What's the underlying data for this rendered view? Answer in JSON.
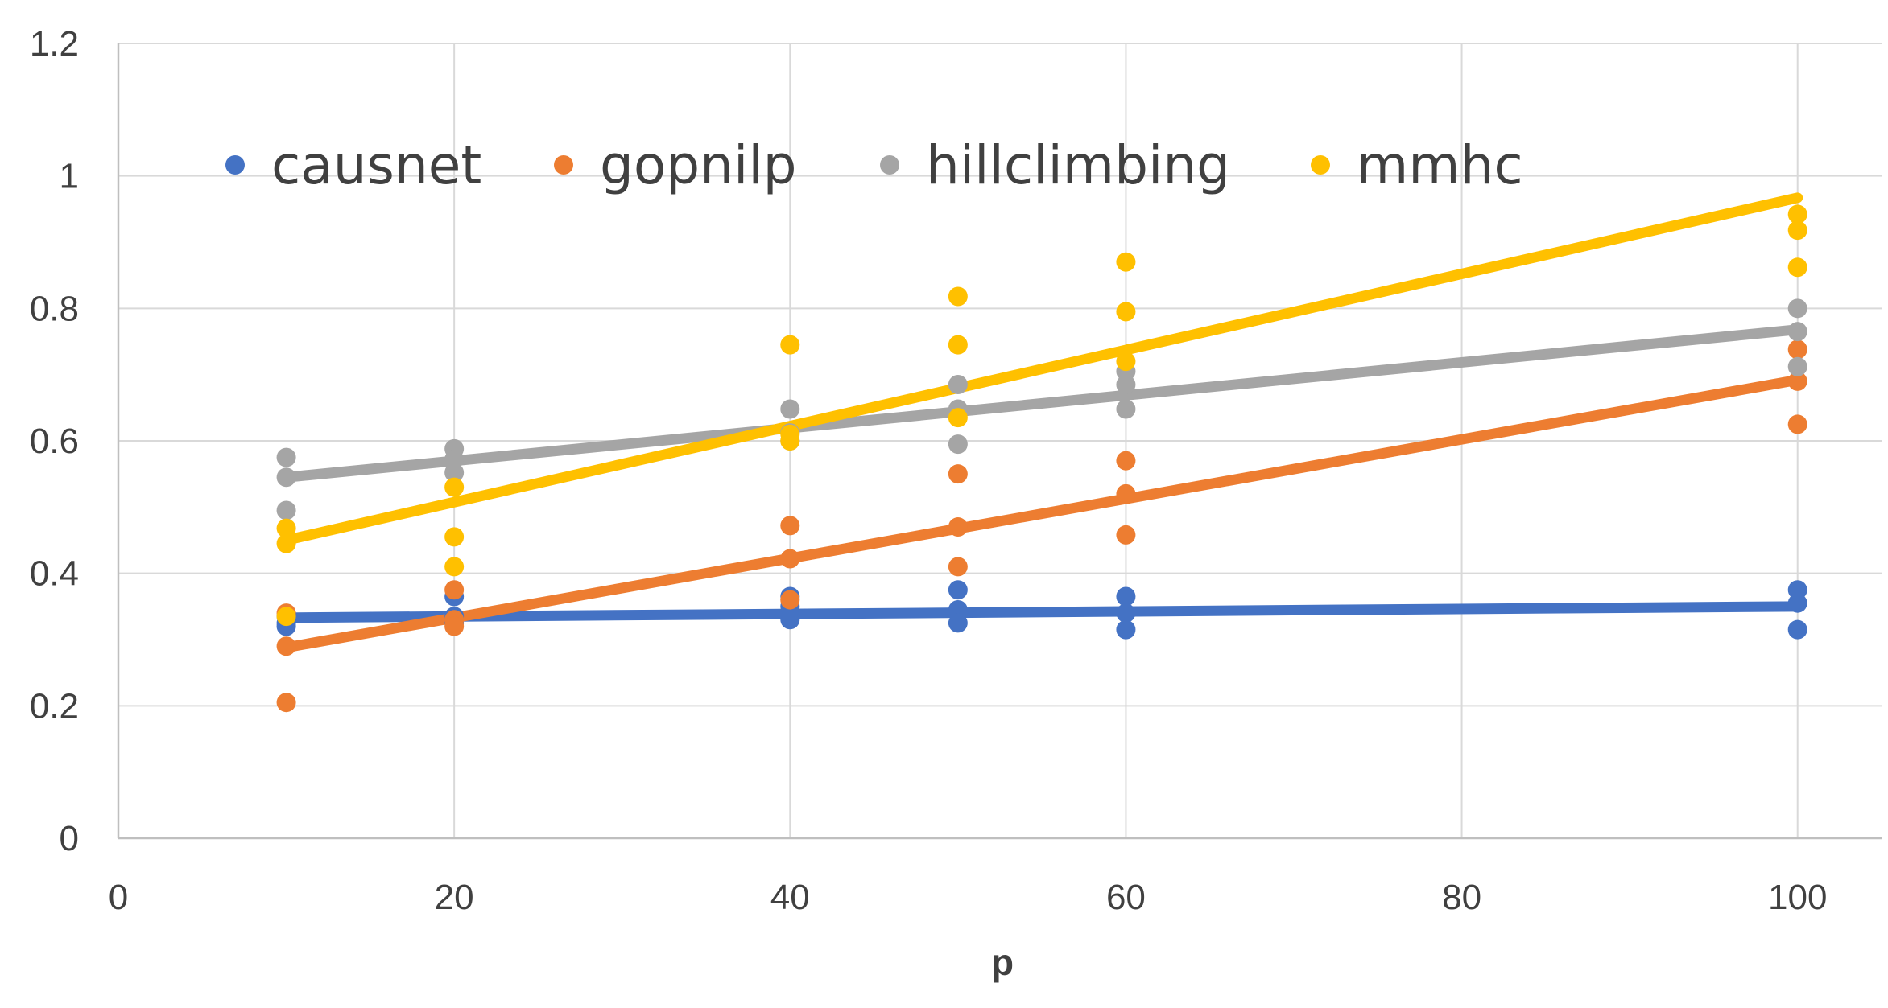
{
  "chart_data": {
    "type": "scatter",
    "title": "",
    "xlabel": "p",
    "ylabel": "",
    "xlim": [
      0,
      105
    ],
    "ylim": [
      0,
      1.2
    ],
    "xticks": [
      0,
      20,
      40,
      60,
      80,
      100
    ],
    "yticks": [
      0,
      0.2,
      0.4,
      0.6,
      0.8,
      1,
      1.2
    ],
    "xtick_labels": [
      "0",
      "20",
      "40",
      "60",
      "80",
      "100"
    ],
    "ytick_labels": [
      "0",
      "0.2",
      "0.4",
      "0.6",
      "0.8",
      "1",
      "1.2"
    ],
    "grid": true,
    "legend_position": "top-left (inside plot)",
    "series": [
      {
        "name": "causnet",
        "color": "#4472C4",
        "points": [
          [
            10,
            0.32
          ],
          [
            10,
            0.325
          ],
          [
            10,
            0.335
          ],
          [
            20,
            0.365
          ],
          [
            20,
            0.335
          ],
          [
            20,
            0.325
          ],
          [
            40,
            0.365
          ],
          [
            40,
            0.35
          ],
          [
            40,
            0.33
          ],
          [
            50,
            0.375
          ],
          [
            50,
            0.345
          ],
          [
            50,
            0.325
          ],
          [
            60,
            0.365
          ],
          [
            60,
            0.34
          ],
          [
            60,
            0.315
          ],
          [
            100,
            0.375
          ],
          [
            100,
            0.355
          ],
          [
            100,
            0.315
          ]
        ],
        "trend": [
          [
            10,
            0.333
          ],
          [
            100,
            0.35
          ]
        ]
      },
      {
        "name": "gopnilp",
        "color": "#ED7D31",
        "points": [
          [
            10,
            0.34
          ],
          [
            10,
            0.29
          ],
          [
            10,
            0.205
          ],
          [
            20,
            0.375
          ],
          [
            20,
            0.33
          ],
          [
            20,
            0.32
          ],
          [
            40,
            0.472
          ],
          [
            40,
            0.422
          ],
          [
            40,
            0.36
          ],
          [
            50,
            0.55
          ],
          [
            50,
            0.47
          ],
          [
            50,
            0.41
          ],
          [
            60,
            0.57
          ],
          [
            60,
            0.52
          ],
          [
            60,
            0.458
          ],
          [
            100,
            0.738
          ],
          [
            100,
            0.69
          ],
          [
            100,
            0.625
          ]
        ],
        "trend": [
          [
            10,
            0.288
          ],
          [
            100,
            0.692
          ]
        ]
      },
      {
        "name": "hillclimbing",
        "color": "#A5A5A5",
        "points": [
          [
            10,
            0.575
          ],
          [
            10,
            0.545
          ],
          [
            10,
            0.495
          ],
          [
            20,
            0.588
          ],
          [
            20,
            0.572
          ],
          [
            20,
            0.552
          ],
          [
            40,
            0.648
          ],
          [
            40,
            0.612
          ],
          [
            40,
            0.6
          ],
          [
            50,
            0.685
          ],
          [
            50,
            0.648
          ],
          [
            50,
            0.595
          ],
          [
            60,
            0.705
          ],
          [
            60,
            0.685
          ],
          [
            60,
            0.648
          ],
          [
            100,
            0.8
          ],
          [
            100,
            0.765
          ],
          [
            100,
            0.712
          ]
        ],
        "trend": [
          [
            10,
            0.545
          ],
          [
            100,
            0.768
          ]
        ]
      },
      {
        "name": "mmhc",
        "color": "#FFC000",
        "points": [
          [
            10,
            0.468
          ],
          [
            10,
            0.445
          ],
          [
            10,
            0.335
          ],
          [
            20,
            0.53
          ],
          [
            20,
            0.455
          ],
          [
            20,
            0.41
          ],
          [
            40,
            0.745
          ],
          [
            40,
            0.61
          ],
          [
            40,
            0.6
          ],
          [
            50,
            0.818
          ],
          [
            50,
            0.745
          ],
          [
            50,
            0.635
          ],
          [
            60,
            0.87
          ],
          [
            60,
            0.795
          ],
          [
            60,
            0.72
          ],
          [
            100,
            0.942
          ],
          [
            100,
            0.918
          ],
          [
            100,
            0.862
          ]
        ],
        "trend": [
          [
            10,
            0.45
          ],
          [
            100,
            0.967
          ]
        ]
      }
    ]
  }
}
